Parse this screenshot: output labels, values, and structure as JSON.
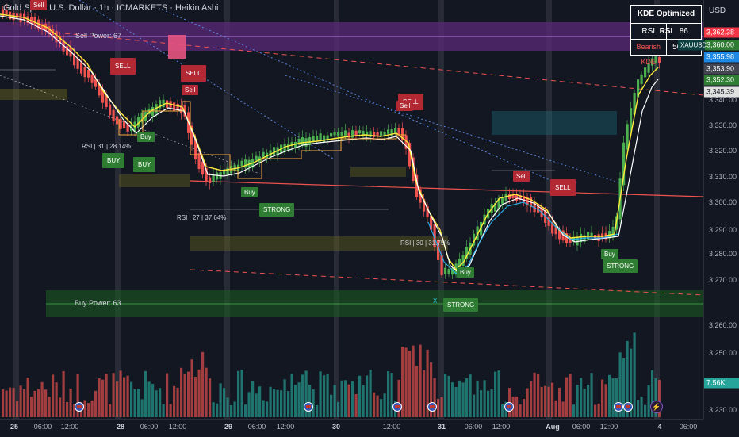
{
  "header": {
    "symbol_title": "Gold Spot / U.S. Dollar · 1h · ICMARKETS · Heikin Ashi",
    "currency": "USD"
  },
  "price_axis": {
    "ticks": [
      "3,340.00",
      "3,330.00",
      "3,320.00",
      "3,310.00",
      "3,300.00",
      "3,290.00",
      "3,280.00",
      "3,270.00",
      "3,260.00",
      "3,250.00",
      "3,240.00",
      "3,230.00"
    ],
    "labels": [
      {
        "text": "3,362.38",
        "color": "#f23645"
      },
      {
        "text": "3,360.00",
        "color": "#2e7d32"
      },
      {
        "text": "3,355.98",
        "color": "#1e88e5"
      },
      {
        "text": "3,353.90",
        "color": "#434651"
      },
      {
        "text": "3,352.30",
        "color": "#2e7d32"
      },
      {
        "text": "3,345.39",
        "color": "#e0e0e0"
      }
    ],
    "volume_label": "7.56K"
  },
  "time_axis": {
    "ticks": [
      {
        "text": "25",
        "bold": true
      },
      {
        "text": "06:00",
        "bold": false
      },
      {
        "text": "12:00",
        "bold": false
      },
      {
        "text": "28",
        "bold": true
      },
      {
        "text": "06:00",
        "bold": false
      },
      {
        "text": "12:00",
        "bold": false
      },
      {
        "text": "29",
        "bold": true
      },
      {
        "text": "06:00",
        "bold": false
      },
      {
        "text": "12:00",
        "bold": false
      },
      {
        "text": "30",
        "bold": true
      },
      {
        "text": "12:00",
        "bold": false
      },
      {
        "text": "31",
        "bold": true
      },
      {
        "text": "06:00",
        "bold": false
      },
      {
        "text": "12:00",
        "bold": false
      },
      {
        "text": "Aug",
        "bold": true
      },
      {
        "text": "06:00",
        "bold": false
      },
      {
        "text": "12:00",
        "bold": false
      },
      {
        "text": "4",
        "bold": true
      },
      {
        "text": "06:00",
        "bold": false
      }
    ]
  },
  "kde_table": {
    "title": "KDE Optimized RSI",
    "rsi_label": "RSI",
    "rsi_value": "86",
    "kde_label": "Bearish KDE",
    "kde_value": "56.4%",
    "symbol_tag": "XAUUSD"
  },
  "zones": {
    "sell_power": "Sell Power: 67",
    "buy_power": "Buy Power: 63"
  },
  "signals": {
    "sell_top": "Sell",
    "sell1": "SELL",
    "sell2": "SELL",
    "sell3": "Sell",
    "sell4": "SELL",
    "sell5": "Sell",
    "sell6": "Sell",
    "sell7": "SELL",
    "buy1": "BUY",
    "buy2": "BUY",
    "buy3": "Buy",
    "buy4": "Buy",
    "buy5": "Buy",
    "buy6": "Buy",
    "strong1": "STRONG",
    "strong2": "STRONG",
    "strong3": "STRONG"
  },
  "notes": {
    "rsi1": "RSI | 31 | 28.14%",
    "rsi2": "RSI | 27 | 37.64%",
    "rsi3": "RSI | 30 | 31.75%",
    "bos": "BOS",
    "x_mark": "X"
  },
  "colors": {
    "bull": "#4caf50",
    "bear": "#ef5350",
    "vol_bull": "#26a69a",
    "vol_bear": "#ef5350",
    "sell_zone": "#7b3fa3",
    "buy_zone": "#1b5e20"
  }
}
